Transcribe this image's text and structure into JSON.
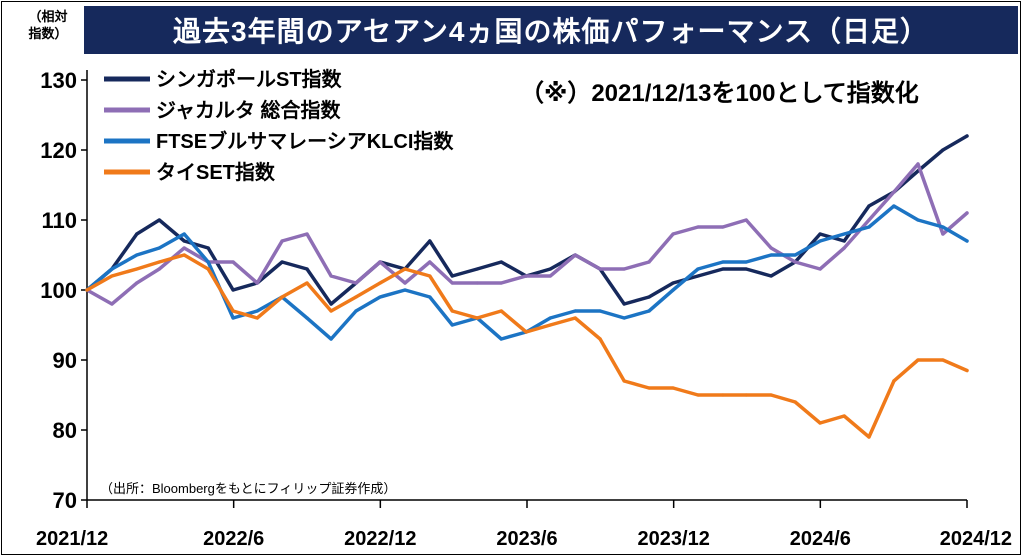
{
  "header": {
    "title": "過去3年間のアセアン4ヵ国の株価パフォーマンス（日足）"
  },
  "unit_label": [
    "（相対",
    "指数）"
  ],
  "chart_data": {
    "type": "line",
    "title": "過去3年間のアセアン4ヵ国の株価パフォーマンス（日足）",
    "note": "（※）2021/12/13を100として指数化",
    "source": "（出所：Bloombergをもとにフィリップ証券作成）",
    "xlabel": "",
    "ylabel": "（相対 指数）",
    "ylim": [
      70,
      130
    ],
    "yticks": [
      70,
      80,
      90,
      100,
      110,
      120,
      130
    ],
    "xticks": [
      "2021/12",
      "2022/6",
      "2022/12",
      "2023/6",
      "2023/12",
      "2024/6",
      "2024/12"
    ],
    "x": [
      "2021-12-13",
      "2022-01-13",
      "2022-02-13",
      "2022-03-13",
      "2022-04-13",
      "2022-05-13",
      "2022-06-13",
      "2022-07-13",
      "2022-08-13",
      "2022-09-13",
      "2022-10-13",
      "2022-11-13",
      "2022-12-13",
      "2023-01-13",
      "2023-02-13",
      "2023-03-13",
      "2023-04-13",
      "2023-05-13",
      "2023-06-13",
      "2023-07-13",
      "2023-08-13",
      "2023-09-13",
      "2023-10-13",
      "2023-11-13",
      "2023-12-13",
      "2024-01-13",
      "2024-02-13",
      "2024-03-13",
      "2024-04-13",
      "2024-05-13",
      "2024-06-13",
      "2024-07-13",
      "2024-08-13",
      "2024-09-13",
      "2024-10-13",
      "2024-11-13",
      "2024-12-13"
    ],
    "grid": false,
    "legend": "top-left",
    "series": [
      {
        "name": "シンガポールST指数",
        "color": "#16295c",
        "values": [
          100,
          103,
          108,
          110,
          107,
          106,
          100,
          101,
          104,
          103,
          98,
          101,
          104,
          103,
          107,
          102,
          103,
          104,
          102,
          103,
          105,
          103,
          98,
          99,
          101,
          102,
          103,
          103,
          102,
          104,
          108,
          107,
          112,
          114,
          117,
          120,
          122
        ]
      },
      {
        "name": "ジャカルタ 総合指数",
        "color": "#8e6eb5",
        "values": [
          100,
          98,
          101,
          103,
          106,
          104,
          104,
          101,
          107,
          108,
          102,
          101,
          104,
          101,
          104,
          101,
          101,
          101,
          102,
          102,
          105,
          103,
          103,
          104,
          108,
          109,
          109,
          110,
          106,
          104,
          103,
          106,
          110,
          114,
          118,
          108,
          111
        ]
      },
      {
        "name": "FTSEブルサマレーシアKLCI指数",
        "color": "#1c74c4",
        "values": [
          100,
          103,
          105,
          106,
          108,
          104,
          96,
          97,
          99,
          96,
          93,
          97,
          99,
          100,
          99,
          95,
          96,
          93,
          94,
          96,
          97,
          97,
          96,
          97,
          100,
          103,
          104,
          104,
          105,
          105,
          107,
          108,
          109,
          112,
          110,
          109,
          107
        ]
      },
      {
        "name": "タイSET指数",
        "color": "#f07a1a",
        "values": [
          100,
          102,
          103,
          104,
          105,
          103,
          97,
          96,
          99,
          101,
          97,
          99,
          101,
          103,
          102,
          97,
          96,
          97,
          94,
          95,
          96,
          93,
          87,
          86,
          86,
          85,
          85,
          85,
          85,
          84,
          81,
          82,
          79,
          87,
          90,
          90,
          88.5
        ]
      }
    ]
  }
}
